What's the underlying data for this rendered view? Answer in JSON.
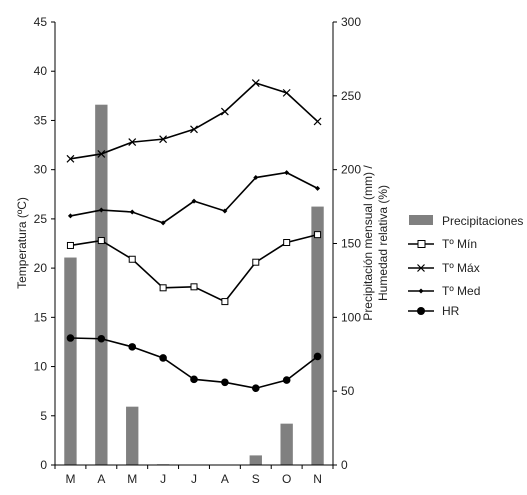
{
  "chart_data": {
    "type": "bar",
    "categories": [
      "M",
      "A",
      "M",
      "J",
      "J",
      "A",
      "S",
      "O",
      "N"
    ],
    "left_axis": {
      "label": "Temperatura (ºC)",
      "ylim": [
        0,
        45
      ],
      "ticks": [
        "0",
        "5",
        "10",
        "15",
        "20",
        "25",
        "30",
        "35",
        "40",
        "45"
      ]
    },
    "right_axis": {
      "label_line1": "Precipitación mensual (mm)  /",
      "label_line2": "Humedad relativa (%)",
      "ylim": [
        0,
        300
      ],
      "ticks": [
        "0",
        "50",
        "100",
        "150",
        "200",
        "250",
        "300"
      ]
    },
    "series": [
      {
        "name": "Precipitaciones",
        "kind": "bar",
        "axis": "right",
        "color": "#808080",
        "values": [
          140.5,
          244,
          39.5,
          0.5,
          0,
          0,
          6.5,
          28,
          175
        ]
      },
      {
        "name": "Tº Mín",
        "kind": "line",
        "axis": "left",
        "marker": "open-square",
        "color": "#000000",
        "values": [
          22.3,
          22.8,
          20.9,
          18.0,
          18.1,
          16.6,
          20.6,
          22.6,
          23.4
        ]
      },
      {
        "name": "Tº Máx",
        "kind": "line",
        "axis": "left",
        "marker": "x",
        "color": "#000000",
        "values": [
          31.1,
          31.6,
          32.8,
          33.1,
          34.1,
          35.9,
          38.8,
          37.8,
          34.9
        ]
      },
      {
        "name": "Tº Med",
        "kind": "line",
        "axis": "left",
        "marker": "small-diamond",
        "color": "#000000",
        "values": [
          25.3,
          25.9,
          25.7,
          24.6,
          26.8,
          25.8,
          29.2,
          29.7,
          28.1
        ]
      },
      {
        "name": "HR",
        "kind": "line",
        "axis": "right",
        "marker": "filled-circle",
        "color": "#000000",
        "values": [
          86,
          85.5,
          80,
          72.5,
          58,
          56,
          52,
          57.5,
          73.5
        ]
      }
    ],
    "legend_position": "right",
    "grid": false
  }
}
